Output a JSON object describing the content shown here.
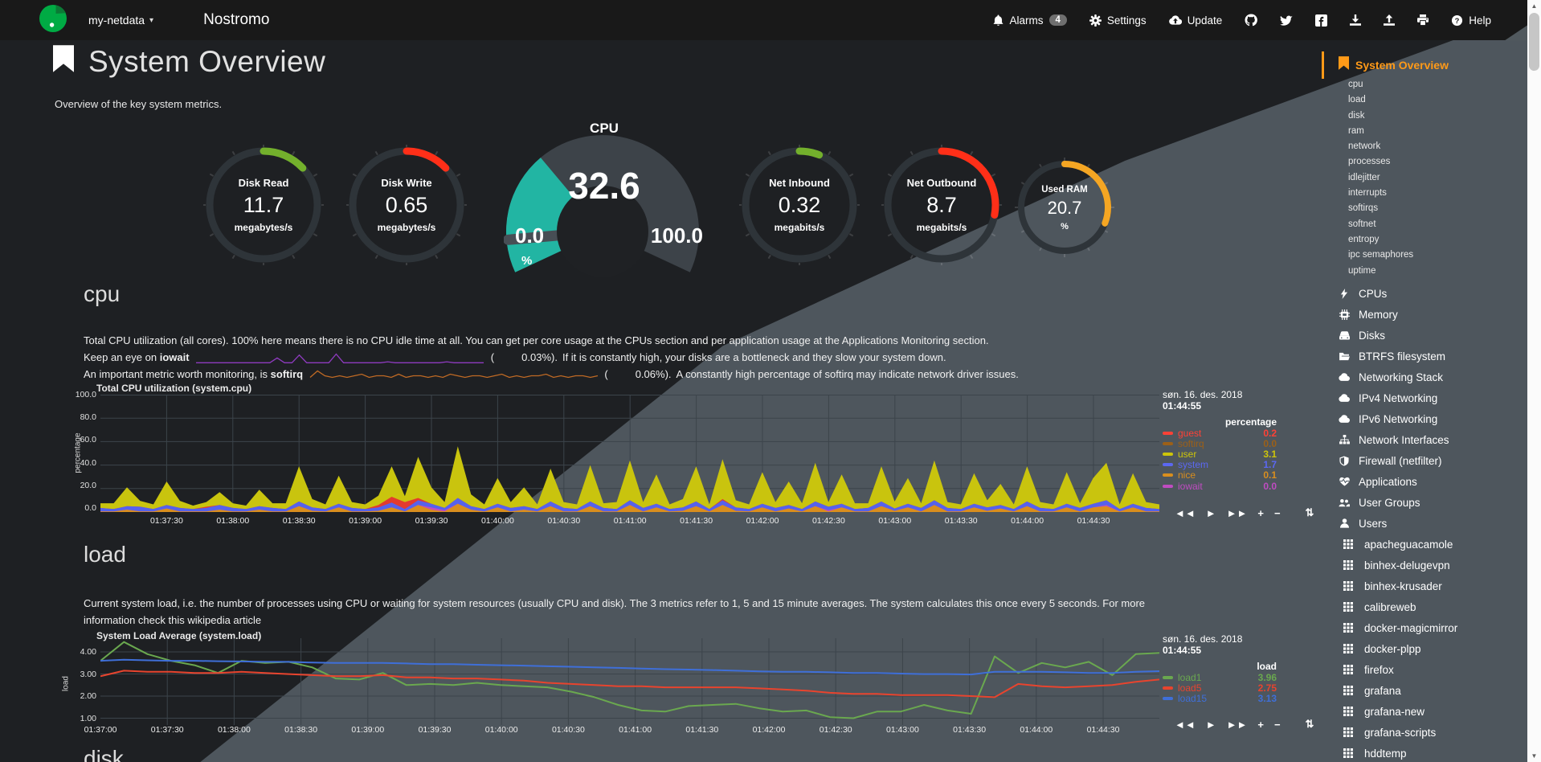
{
  "navbar": {
    "hostname": "my-netdata",
    "caret": "▾",
    "brand": "Nostromo",
    "alarms_label": "Alarms",
    "alarms_count": "4",
    "settings_label": "Settings",
    "update_label": "Update",
    "help_label": "Help"
  },
  "header": {
    "title": "System Overview",
    "subtitle": "Overview of the key system metrics."
  },
  "gauges": {
    "disk_read": {
      "title": "Disk Read",
      "value": "11.7",
      "unit": "megabytes/s",
      "arc_color": "#73b02c",
      "arc_pct": 13
    },
    "disk_write": {
      "title": "Disk Write",
      "value": "0.65",
      "unit": "megabytes/s",
      "arc_color": "#ff2f18",
      "arc_pct": 13
    },
    "cpu": {
      "title": "CPU",
      "value": "32.6",
      "min": "0.0",
      "max": "100.0",
      "unit": "%",
      "fill_color": "#22b5a3",
      "fill_pct": 32.6
    },
    "net_inbound": {
      "title": "Net Inbound",
      "value": "0.32",
      "unit": "megabits/s",
      "arc_color": "#73b02c",
      "arc_pct": 6
    },
    "net_outbound": {
      "title": "Net Outbound",
      "value": "8.7",
      "unit": "megabits/s",
      "arc_color": "#ff2f18",
      "arc_pct": 28
    },
    "used_ram": {
      "title": "Used RAM",
      "value": "20.7",
      "unit": "%",
      "arc_color": "#f5a623",
      "arc_pct": 31
    }
  },
  "cpu_section": {
    "heading": "cpu",
    "desc1": "Total CPU utilization (all cores). 100% here means there is no CPU idle time at all. You can get per core usage at the CPUs section and per application usage at the Applications Monitoring section.",
    "line2_pre": "Keep an eye on",
    "line2_kw": "iowait",
    "line2_open": "(",
    "line2_val": "0.03%).",
    "line2_rest": "If it is constantly high, your disks are a bottleneck and they slow your system down.",
    "line3_pre": "An important metric worth monitoring, is",
    "line3_kw": "softirq",
    "line3_open": "(",
    "line3_val": "0.06%).",
    "line3_rest": "A constantly high percentage of softirq may indicate network driver issues."
  },
  "load_section": {
    "heading": "load",
    "desc1": "Current system load, i.e. the number of processes using CPU or waiting for system resources (usually CPU and disk). The 3 metrics refer to 1, 5 and 15 minute averages. The system calculates this once every 5 seconds. For more",
    "desc2_pre": "information check this ",
    "desc2_link": "wikipedia article"
  },
  "disk_section": {
    "heading": "disk"
  },
  "chart_toolbar": [
    "◄◄",
    "►",
    "►►",
    "+",
    "−",
    "⇅"
  ],
  "chart_data": [
    {
      "type": "area",
      "stacked": true,
      "title": "Total CPU utilization (system.cpu)",
      "ylabel": "percentage",
      "ylim": [
        0,
        100
      ],
      "yticks": [
        "100.0",
        "80.0",
        "60.0",
        "40.0",
        "20.0",
        "0.0"
      ],
      "x_ticks": [
        "01:37:30",
        "01:38:00",
        "01:38:30",
        "01:39:00",
        "01:39:30",
        "01:40:00",
        "01:40:30",
        "01:41:00",
        "01:41:30",
        "01:42:00",
        "01:42:30",
        "01:43:00",
        "01:43:30",
        "01:44:00",
        "01:44:30"
      ],
      "series": [
        {
          "name": "nice",
          "color": "#d98e1e",
          "values": [
            0.5,
            0.5,
            2,
            0.5,
            0.5,
            3,
            0.5,
            0.5,
            0.5,
            2,
            0.5,
            0.5,
            2,
            0.5,
            0.5,
            5,
            1,
            0.5,
            4,
            0.5,
            0.5,
            1,
            4,
            0.5,
            6,
            2,
            0.5,
            7,
            2,
            0.5,
            4,
            0.5,
            2,
            0.5,
            5,
            0.5,
            0.5,
            5,
            0.5,
            0.5,
            6,
            0.5,
            4,
            0.5,
            1,
            5,
            0.5,
            6,
            1,
            0.5,
            4,
            0.5,
            3,
            0.5,
            5,
            0.5,
            4,
            0.5,
            0.5,
            5,
            1,
            4,
            0.5,
            6,
            0.5,
            0.5,
            4,
            1,
            3,
            0.5,
            5,
            0.5,
            0.5,
            4,
            0.5,
            4,
            5,
            0.5,
            4,
            0.5,
            0.5
          ]
        },
        {
          "name": "iowait",
          "color": "#bf4cc1",
          "values": [
            0,
            0,
            0,
            0,
            0,
            0,
            0,
            0,
            0,
            0,
            0,
            0,
            0,
            0,
            0,
            0,
            0,
            0,
            0,
            0,
            0,
            0,
            0,
            0,
            0,
            2,
            1,
            0,
            0,
            0,
            0,
            0,
            0,
            0,
            0,
            0,
            0,
            0,
            0,
            0,
            0,
            0,
            0,
            0,
            0,
            0,
            0,
            0,
            0,
            0,
            0,
            0,
            0,
            0,
            0,
            1,
            0,
            0,
            0,
            0,
            0,
            0,
            0,
            0,
            0,
            0,
            0,
            0,
            0,
            0,
            0,
            0,
            0,
            0,
            0,
            0,
            1,
            0,
            0,
            0,
            0
          ]
        },
        {
          "name": "system",
          "color": "#5662ec",
          "values": [
            3,
            2,
            3,
            4,
            2,
            3,
            3,
            2,
            3,
            4,
            3,
            2,
            3,
            3,
            2,
            4,
            3,
            2,
            3,
            3,
            2,
            3,
            4,
            2,
            4,
            3,
            2,
            5,
            3,
            2,
            3,
            3,
            3,
            2,
            4,
            3,
            2,
            4,
            3,
            2,
            4,
            3,
            3,
            2,
            3,
            4,
            2,
            4,
            3,
            2,
            3,
            3,
            3,
            2,
            4,
            3,
            3,
            2,
            3,
            4,
            2,
            3,
            3,
            4,
            3,
            2,
            3,
            3,
            3,
            2,
            4,
            3,
            2,
            3,
            3,
            3,
            4,
            2,
            3,
            3,
            2
          ]
        },
        {
          "name": "guest",
          "color": "#e33b2e",
          "values": [
            0,
            0,
            0,
            0,
            0,
            0,
            0,
            0,
            1,
            0,
            0,
            0,
            0,
            0,
            0,
            0,
            0,
            0,
            0,
            0,
            0,
            2,
            5,
            6,
            2,
            0,
            0,
            0,
            0,
            0,
            0,
            0,
            0,
            0,
            0,
            0,
            0,
            0,
            0,
            0,
            0,
            0,
            0,
            0,
            0,
            0,
            0,
            1,
            0,
            0,
            0,
            0,
            0,
            0,
            0,
            0,
            0,
            0,
            0,
            0,
            0,
            0,
            0,
            0,
            0,
            0,
            0,
            0,
            0,
            0,
            0,
            0,
            0,
            0,
            0,
            0,
            0,
            0,
            0,
            0,
            0
          ]
        },
        {
          "name": "user",
          "color": "#c9c40e",
          "values": [
            4,
            5,
            16,
            5,
            4,
            20,
            6,
            3,
            4,
            11,
            4,
            3,
            14,
            4,
            5,
            30,
            7,
            4,
            24,
            5,
            4,
            8,
            26,
            5,
            35,
            14,
            5,
            44,
            10,
            4,
            22,
            5,
            16,
            4,
            28,
            5,
            4,
            31,
            4,
            6,
            34,
            5,
            25,
            4,
            7,
            30,
            4,
            34,
            6,
            4,
            27,
            5,
            20,
            5,
            33,
            4,
            25,
            5,
            4,
            30,
            6,
            22,
            4,
            34,
            5,
            4,
            26,
            6,
            18,
            4,
            30,
            5,
            4,
            27,
            4,
            22,
            32,
            4,
            26,
            5,
            4
          ]
        }
      ],
      "legend": {
        "date": "søn. 16. des. 2018",
        "time": "01:44:55",
        "unit": "percentage",
        "entries": [
          {
            "name": "guest",
            "value": "0.2",
            "color": "#ff4136"
          },
          {
            "name": "softirq",
            "value": "0.0",
            "color": "#9c6018"
          },
          {
            "name": "user",
            "value": "3.1",
            "color": "#cdc50a"
          },
          {
            "name": "system",
            "value": "1.7",
            "color": "#5b68f2"
          },
          {
            "name": "nice",
            "value": "0.1",
            "color": "#d98e1e"
          },
          {
            "name": "iowait",
            "value": "0.0",
            "color": "#bf4cc1"
          }
        ]
      }
    },
    {
      "type": "line",
      "title": "System Load Average (system.load)",
      "ylabel": "load",
      "ylim": [
        1,
        4
      ],
      "yticks": [
        "4.00",
        "3.00",
        "2.00",
        "1.00"
      ],
      "x_ticks": [
        "01:37:00",
        "01:37:30",
        "01:38:00",
        "01:38:30",
        "01:39:00",
        "01:39:30",
        "01:40:00",
        "01:40:30",
        "01:41:00",
        "01:41:30",
        "01:42:00",
        "01:42:30",
        "01:43:00",
        "01:43:30",
        "01:44:00",
        "01:44:30"
      ],
      "series": [
        {
          "name": "load1",
          "color": "#6aa84f",
          "values": [
            3.6,
            4.45,
            3.9,
            3.6,
            3.4,
            3.05,
            3.6,
            3.5,
            3.55,
            3.3,
            2.8,
            2.75,
            3.05,
            2.5,
            2.55,
            2.5,
            2.6,
            2.5,
            2.45,
            2.4,
            2.2,
            1.95,
            1.6,
            1.35,
            1.3,
            1.55,
            1.6,
            1.65,
            1.45,
            1.3,
            1.35,
            1.05,
            1.0,
            1.3,
            1.3,
            1.6,
            1.35,
            1.2,
            3.8,
            3.05,
            3.5,
            3.3,
            3.55,
            2.95,
            3.9,
            3.96
          ]
        },
        {
          "name": "load5",
          "color": "#e8442e",
          "values": [
            2.9,
            3.15,
            3.1,
            3.1,
            3.05,
            3.05,
            3.1,
            3.05,
            3.0,
            2.95,
            2.9,
            2.9,
            2.95,
            2.85,
            2.85,
            2.8,
            2.8,
            2.75,
            2.7,
            2.6,
            2.55,
            2.5,
            2.45,
            2.45,
            2.4,
            2.4,
            2.4,
            2.4,
            2.35,
            2.3,
            2.25,
            2.15,
            2.1,
            2.1,
            2.05,
            2.05,
            2.05,
            2.0,
            1.95,
            2.55,
            2.45,
            2.4,
            2.45,
            2.5,
            2.65,
            2.75
          ]
        },
        {
          "name": "load15",
          "color": "#3f6fd8",
          "values": [
            3.6,
            3.65,
            3.62,
            3.6,
            3.6,
            3.58,
            3.57,
            3.55,
            3.55,
            3.52,
            3.5,
            3.5,
            3.5,
            3.48,
            3.45,
            3.45,
            3.42,
            3.4,
            3.38,
            3.35,
            3.33,
            3.3,
            3.28,
            3.25,
            3.22,
            3.2,
            3.18,
            3.15,
            3.12,
            3.1,
            3.1,
            3.08,
            3.05,
            3.05,
            3.02,
            3.0,
            3.0,
            2.98,
            3.1,
            3.1,
            3.1,
            3.08,
            3.05,
            3.05,
            3.1,
            3.13
          ]
        }
      ],
      "legend": {
        "date": "søn. 16. des. 2018",
        "time": "01:44:55",
        "unit": "load",
        "entries": [
          {
            "name": "load1",
            "value": "3.96",
            "color": "#6aa84f"
          },
          {
            "name": "load5",
            "value": "2.75",
            "color": "#e8442e"
          },
          {
            "name": "load15",
            "value": "3.13",
            "color": "#3f6fd8"
          }
        ]
      }
    },
    {
      "type": "line",
      "name": "iowait-sparkline",
      "color": "#8e3bbf",
      "values": [
        1,
        1,
        1,
        1,
        1,
        1,
        1,
        1,
        1,
        1,
        1,
        6,
        1,
        1,
        9,
        1,
        1,
        1,
        1,
        10,
        1,
        1,
        1,
        1,
        1,
        1,
        2,
        1,
        1,
        1,
        1,
        1,
        1,
        1,
        2,
        1,
        1,
        1,
        1,
        1
      ]
    },
    {
      "type": "line",
      "name": "softirq-sparkline",
      "color": "#c06a24",
      "values": [
        2,
        6,
        3,
        2,
        3,
        2,
        3,
        4,
        2,
        3,
        3,
        2,
        4,
        2,
        3,
        3,
        2,
        3,
        2,
        4,
        3,
        2,
        3,
        3,
        2,
        3,
        4,
        2,
        3,
        2,
        3,
        3,
        4,
        2,
        3,
        2,
        3,
        3,
        2,
        3
      ]
    }
  ],
  "sidebar": {
    "active_label": "System Overview",
    "sub_items": [
      "cpu",
      "load",
      "disk",
      "ram",
      "network",
      "processes",
      "idlejitter",
      "interrupts",
      "softirqs",
      "softnet",
      "entropy",
      "ipc semaphores",
      "uptime"
    ],
    "sections": [
      {
        "icon": "bolt-icon",
        "label": "CPUs"
      },
      {
        "icon": "memory-icon",
        "label": "Memory"
      },
      {
        "icon": "hdd-icon",
        "label": "Disks"
      },
      {
        "icon": "folder-open-icon",
        "label": "BTRFS filesystem"
      },
      {
        "icon": "cloud-icon",
        "label": "Networking Stack"
      },
      {
        "icon": "cloud-icon",
        "label": "IPv4 Networking"
      },
      {
        "icon": "cloud-icon",
        "label": "IPv6 Networking"
      },
      {
        "icon": "sitemap-icon",
        "label": "Network Interfaces"
      },
      {
        "icon": "shield-icon",
        "label": "Firewall (netfilter)"
      },
      {
        "icon": "heartbeat-icon",
        "label": "Applications"
      },
      {
        "icon": "users-icon",
        "label": "User Groups"
      },
      {
        "icon": "user-icon",
        "label": "Users"
      }
    ],
    "apps": [
      {
        "icon": "grid-icon",
        "label": "apacheguacamole"
      },
      {
        "icon": "grid-icon",
        "label": "binhex-delugevpn"
      },
      {
        "icon": "grid-icon",
        "label": "binhex-krusader"
      },
      {
        "icon": "grid-icon",
        "label": "calibreweb"
      },
      {
        "icon": "grid-icon",
        "label": "docker-magicmirror"
      },
      {
        "icon": "grid-icon",
        "label": "docker-plpp"
      },
      {
        "icon": "grid-icon",
        "label": "firefox"
      },
      {
        "icon": "grid-icon",
        "label": "grafana"
      },
      {
        "icon": "grid-icon",
        "label": "grafana-new"
      },
      {
        "icon": "grid-icon",
        "label": "grafana-scripts"
      },
      {
        "icon": "grid-icon",
        "label": "hddtemp"
      }
    ]
  }
}
